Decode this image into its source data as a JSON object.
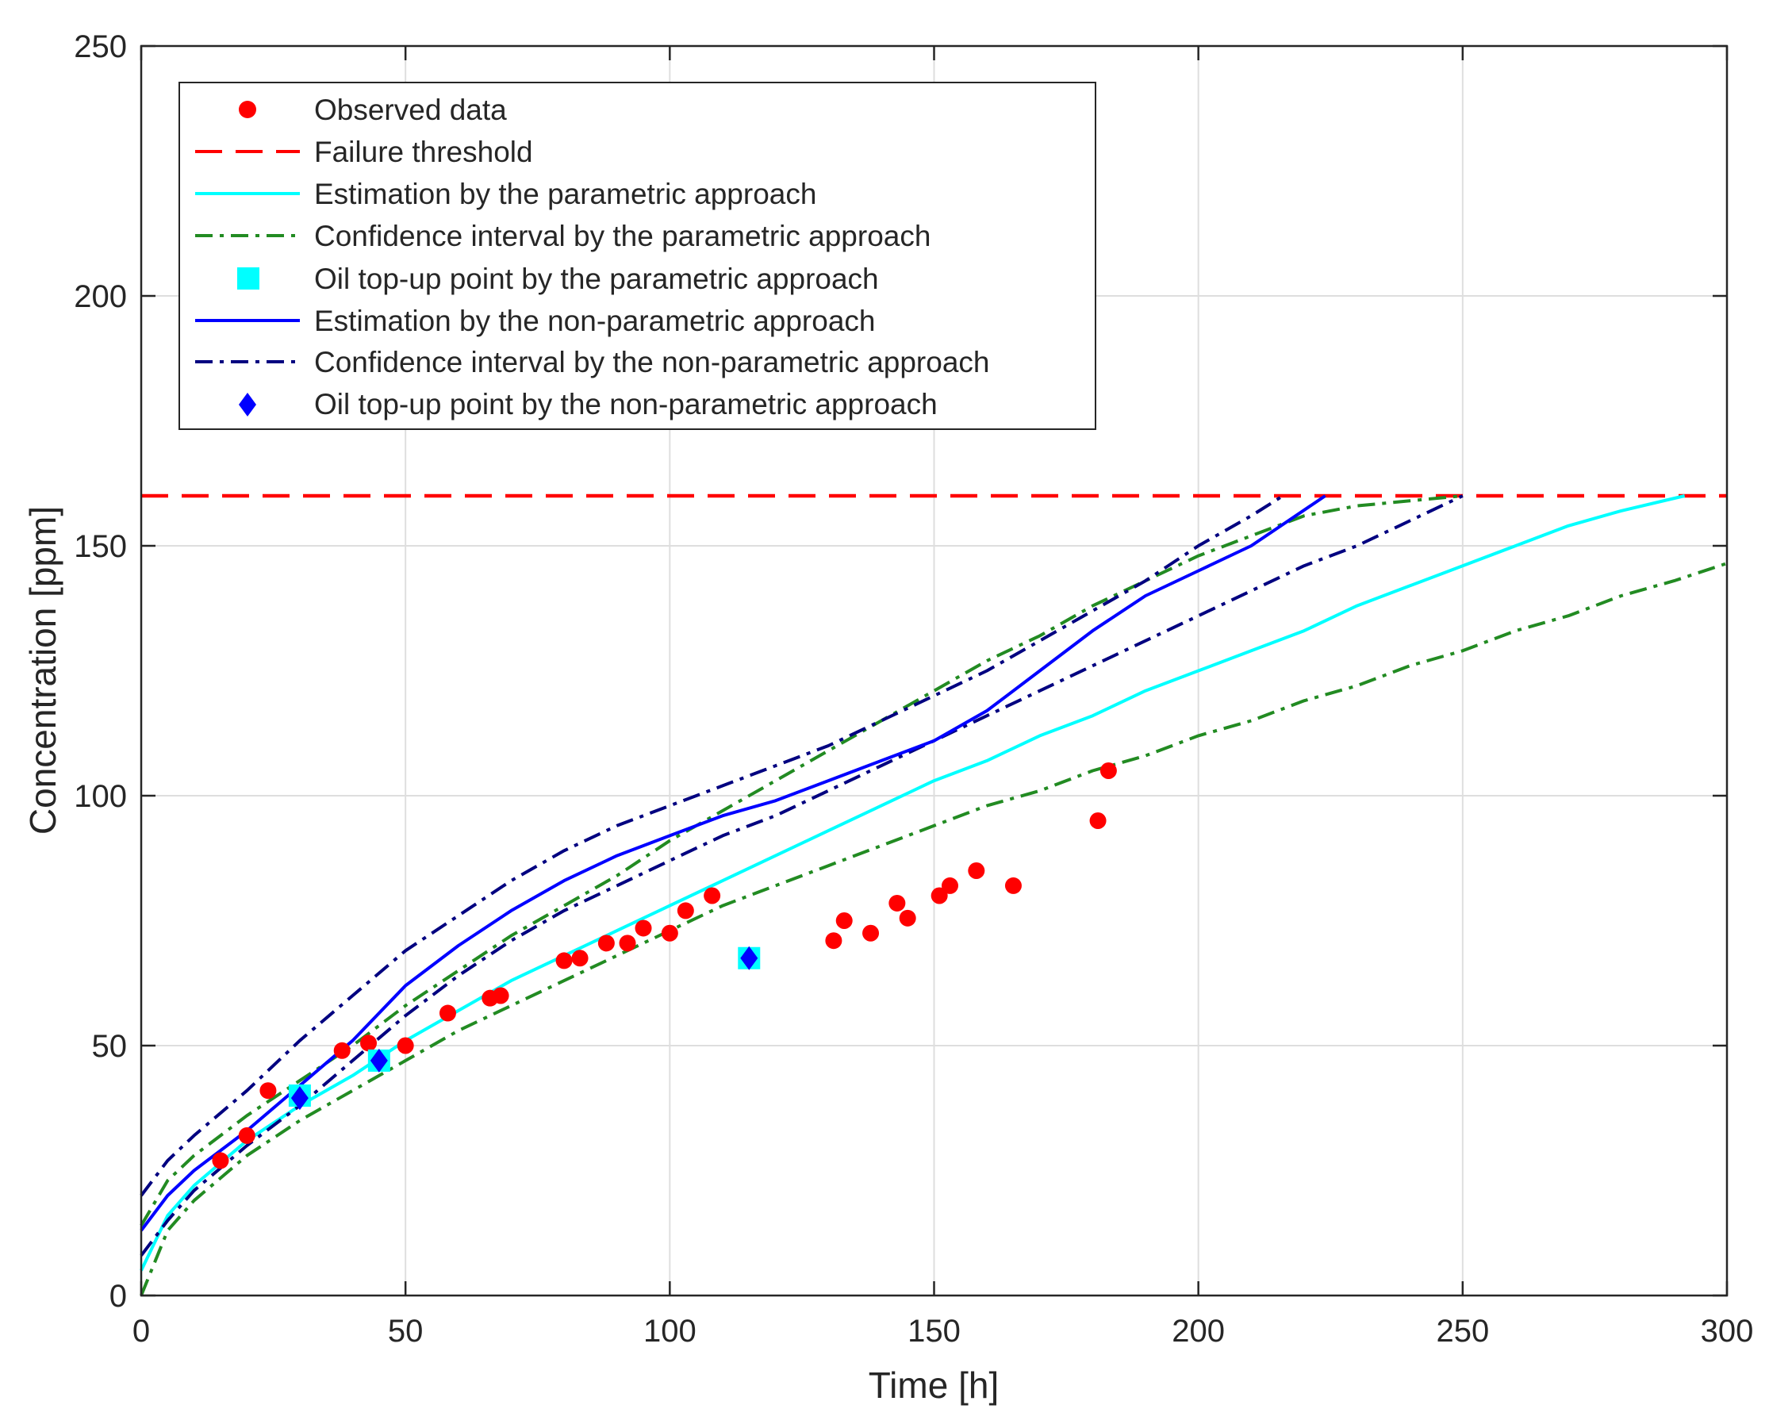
{
  "chart_data": {
    "type": "line",
    "title": "",
    "xlabel": "Time [h]",
    "ylabel": "Concentration [ppm]",
    "xlim": [
      0,
      300
    ],
    "ylim": [
      0,
      250
    ],
    "xticks": [
      0,
      50,
      100,
      150,
      200,
      250,
      300
    ],
    "yticks": [
      0,
      50,
      100,
      150,
      200,
      250
    ],
    "grid": true,
    "legend_position": "top-left",
    "colors": {
      "observed": "#ff0000",
      "threshold": "#ff0000",
      "param_estimate": "#00ffff",
      "param_ci": "#228b22",
      "nonparam_estimate": "#0000ff",
      "nonparam_ci": "#000080",
      "param_topup": "#00ffff",
      "nonparam_topup": "#0000ff",
      "grid": "#dedede",
      "axis": "#262626"
    },
    "legend": [
      "Observed data",
      "Failure threshold",
      "Estimation by the parametric approach",
      "Confidence interval by the parametric approach",
      "Oil top-up point by the parametric approach",
      "Estimation by the non-parametric approach",
      "Confidence interval by the non-parametric approach",
      "Oil top-up point by the non-parametric approach"
    ],
    "observed_data": {
      "x": [
        15,
        20,
        24,
        38,
        43,
        50,
        58,
        66,
        68,
        80,
        83,
        88,
        92,
        95,
        100,
        103,
        108,
        131,
        133,
        138,
        143,
        145,
        151,
        153,
        158,
        165,
        181,
        183
      ],
      "y": [
        27,
        32,
        41,
        49,
        50.5,
        50,
        56.5,
        59.5,
        60,
        67,
        67.5,
        70.5,
        70.5,
        73.5,
        72.5,
        77,
        80,
        71,
        75,
        72.5,
        78.5,
        75.5,
        80,
        82,
        85,
        82,
        95,
        105
      ]
    },
    "failure_threshold": 160,
    "param_estimate": {
      "x": [
        0,
        5,
        10,
        20,
        30,
        40,
        50,
        60,
        70,
        80,
        90,
        100,
        110,
        120,
        130,
        140,
        150,
        160,
        170,
        180,
        190,
        200,
        210,
        220,
        230,
        240,
        250,
        260,
        270,
        280,
        292
      ],
      "y": [
        5,
        16,
        22,
        31,
        38,
        44,
        51,
        57,
        63,
        68,
        73,
        78,
        83,
        88,
        93,
        98,
        103,
        107,
        112,
        116,
        121,
        125,
        129,
        133,
        138,
        142,
        146,
        150,
        154,
        157,
        160
      ]
    },
    "param_ci_upper": {
      "x": [
        0,
        5,
        10,
        20,
        30,
        40,
        50,
        60,
        70,
        80,
        90,
        100,
        110,
        120,
        130,
        140,
        150,
        160,
        170,
        180,
        190,
        200,
        210,
        220,
        230,
        240,
        250
      ],
      "y": [
        14,
        23,
        28,
        36,
        43,
        50,
        58,
        65,
        72,
        78,
        84,
        91,
        97,
        103,
        109,
        115,
        121,
        127,
        132,
        138,
        143,
        148,
        152,
        156,
        158,
        159,
        160
      ]
    },
    "param_ci_lower": {
      "x": [
        0,
        5,
        10,
        20,
        30,
        40,
        50,
        60,
        70,
        80,
        90,
        100,
        110,
        120,
        130,
        140,
        150,
        160,
        170,
        180,
        190,
        200,
        210,
        220,
        230,
        240,
        250,
        260,
        270,
        280,
        290,
        300
      ],
      "y": [
        0,
        13,
        19,
        28,
        35,
        41,
        47,
        53,
        58,
        63,
        68,
        73,
        78,
        82,
        86,
        90,
        94,
        98,
        101,
        105,
        108,
        112,
        115,
        119,
        122,
        126,
        129,
        133,
        136,
        140,
        143,
        146.5
      ]
    },
    "nonparam_estimate": {
      "x": [
        0,
        5,
        10,
        20,
        30,
        40,
        50,
        60,
        70,
        80,
        90,
        100,
        110,
        120,
        130,
        140,
        150,
        160,
        170,
        180,
        190,
        200,
        210,
        224
      ],
      "y": [
        13,
        20,
        25,
        33,
        42,
        51,
        62,
        70,
        77,
        83,
        88,
        92,
        96,
        99,
        103,
        107,
        111,
        117,
        125,
        133,
        140,
        145,
        150,
        160
      ]
    },
    "nonparam_ci_upper": {
      "x": [
        0,
        5,
        10,
        20,
        30,
        40,
        50,
        60,
        70,
        80,
        90,
        100,
        110,
        120,
        130,
        140,
        150,
        160,
        170,
        180,
        190,
        200,
        210,
        216
      ],
      "y": [
        20,
        27,
        32,
        41,
        51,
        60,
        69,
        76,
        83,
        89,
        94,
        98,
        102,
        106,
        110,
        115,
        120,
        125,
        131,
        137,
        143,
        150,
        156,
        160
      ]
    },
    "nonparam_ci_lower": {
      "x": [
        0,
        5,
        10,
        20,
        30,
        40,
        50,
        60,
        70,
        80,
        90,
        100,
        110,
        120,
        130,
        140,
        150,
        160,
        170,
        180,
        190,
        200,
        210,
        220,
        230,
        240,
        250
      ],
      "y": [
        8,
        15,
        21,
        30,
        38,
        47,
        56,
        64,
        71,
        77,
        82,
        87,
        92,
        96,
        101,
        106,
        111,
        116,
        121,
        126,
        131,
        136,
        141,
        146,
        150,
        155,
        160
      ]
    },
    "param_topup_points": {
      "x": [
        30,
        45,
        115
      ],
      "y": [
        40,
        47,
        67.5
      ]
    },
    "nonparam_topup_points": {
      "x": [
        30,
        45,
        115
      ],
      "y": [
        39.5,
        47,
        67.5
      ]
    }
  }
}
